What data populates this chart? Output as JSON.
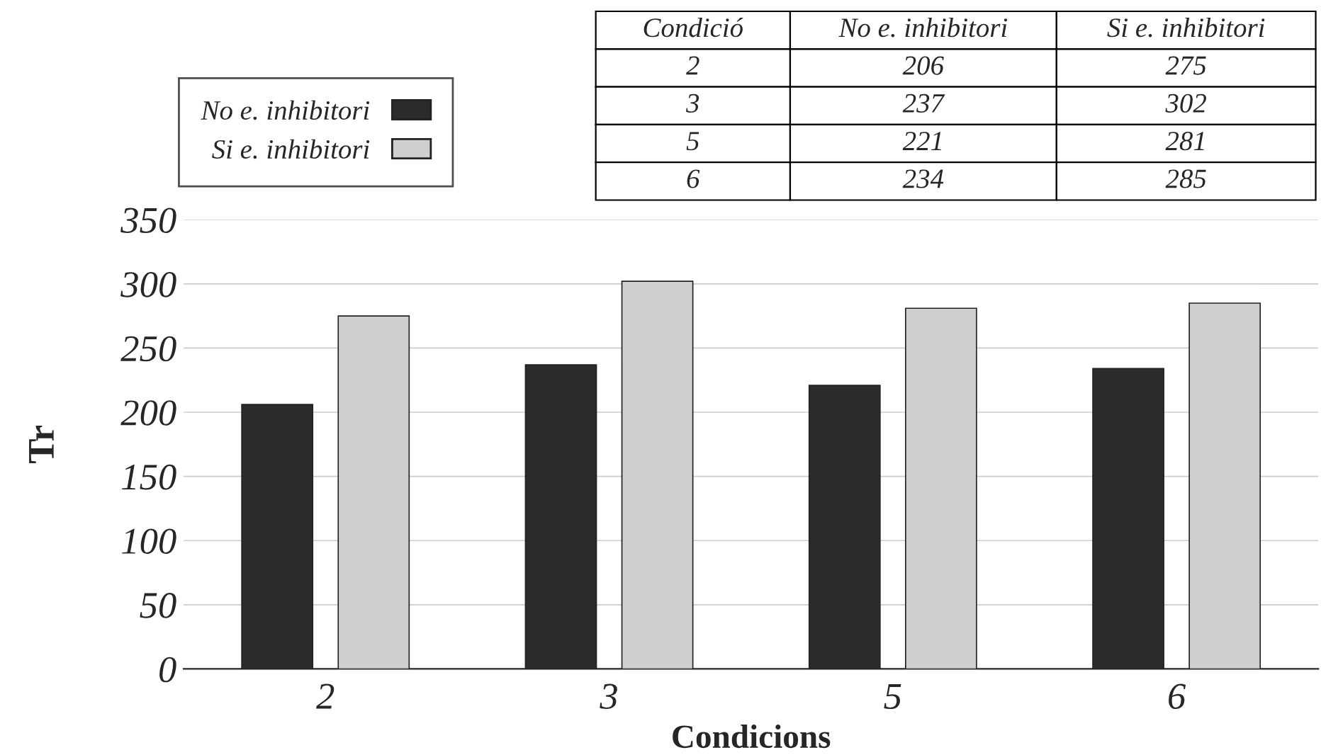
{
  "chart_data": [
    {
      "type": "bar",
      "xlabel": "Condicions",
      "ylabel": "Tr",
      "categories": [
        "2",
        "3",
        "5",
        "6"
      ],
      "series": [
        {
          "name": "No e. inhibitori",
          "color": "#2b2b2b",
          "values": [
            206,
            237,
            221,
            234
          ]
        },
        {
          "name": "Si e. inhibitori",
          "color": "#cfcfcf",
          "values": [
            275,
            302,
            281,
            285
          ]
        }
      ],
      "ylim": [
        0,
        350
      ],
      "yticks": [
        0,
        50,
        100,
        150,
        200,
        250,
        300,
        350
      ],
      "grid": "y",
      "legend": "top left"
    },
    {
      "type": "other",
      "annotations": [
        "Condició",
        "No e. inhibitori",
        "Si e. inhibitori",
        "2",
        "206",
        "275",
        "3",
        "237",
        "302",
        "5",
        "221",
        "281",
        "6",
        "234",
        "285"
      ]
    }
  ]
}
